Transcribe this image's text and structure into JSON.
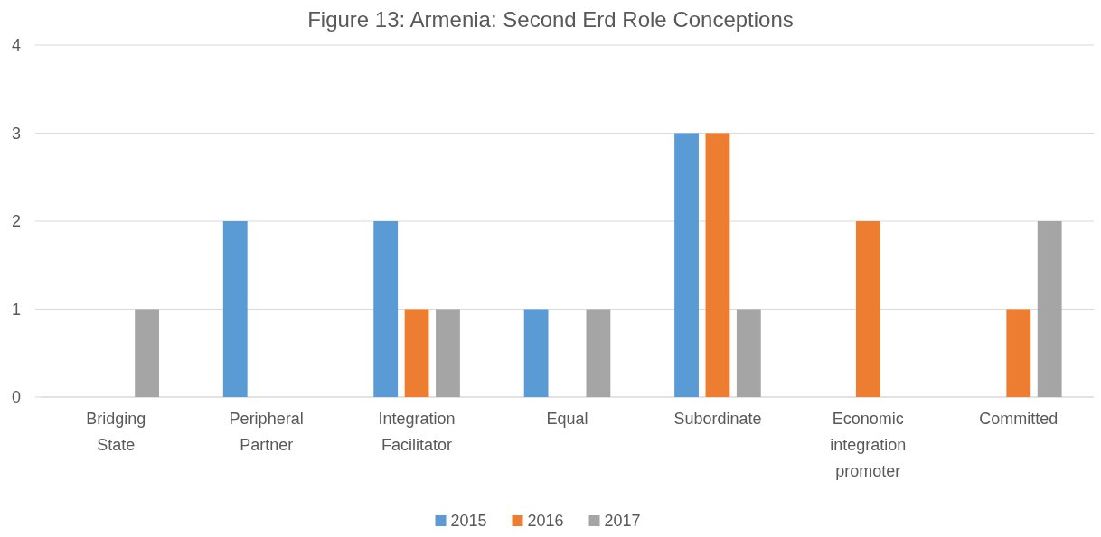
{
  "chart_data": {
    "type": "bar",
    "title": "Figure 13: Armenia: Second Erd Role Conceptions",
    "categories": [
      "Bridging State",
      "Peripheral Partner",
      "Integration Facilitator",
      "Equal",
      "Subordinate",
      "Economic integration promoter",
      "Committed"
    ],
    "series": [
      {
        "name": "2015",
        "color": "#5b9bd5",
        "values": [
          0,
          2,
          2,
          1,
          3,
          0,
          0
        ]
      },
      {
        "name": "2016",
        "color": "#ed7d31",
        "values": [
          0,
          0,
          1,
          0,
          3,
          2,
          1
        ]
      },
      {
        "name": "2017",
        "color": "#a5a5a5",
        "values": [
          1,
          0,
          1,
          1,
          1,
          0,
          2
        ]
      }
    ],
    "ylim": [
      0,
      4
    ],
    "yticks": [
      0,
      1,
      2,
      3,
      4
    ],
    "grid": "y",
    "legend": "bottom"
  }
}
